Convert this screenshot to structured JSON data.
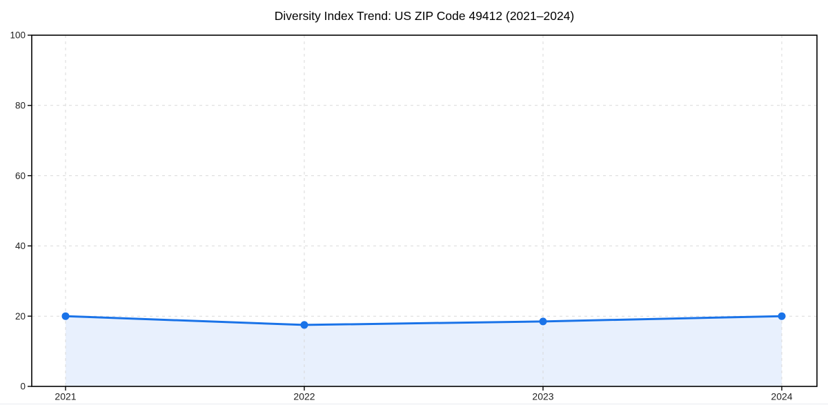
{
  "page": {
    "background": "#ffffff",
    "divider_color": "#e7ebf0"
  },
  "chart_data": {
    "type": "line",
    "title": "Diversity Index Trend: US ZIP Code 49412 (2021–2024)",
    "categories": [
      "2021",
      "2022",
      "2023",
      "2024"
    ],
    "series": [
      {
        "name": "Diversity Index",
        "values": [
          20,
          17.5,
          18.5,
          20
        ]
      }
    ],
    "xlabel": "",
    "ylabel": "",
    "ylim": [
      0,
      100
    ],
    "yticks": [
      0,
      20,
      40,
      60,
      80,
      100
    ],
    "grid": true,
    "grid_style": "dashed",
    "legend_position": "none",
    "area_fill": true,
    "marker": "circle",
    "styles": {
      "line_color": "#1a73e8",
      "marker_color": "#1a73e8",
      "fill_color": "#e8f0fd",
      "grid_color": "#d9d9d9",
      "axis_color": "#000000",
      "tick_label_color": "#1f1f1f",
      "title_color": "#000000"
    }
  }
}
